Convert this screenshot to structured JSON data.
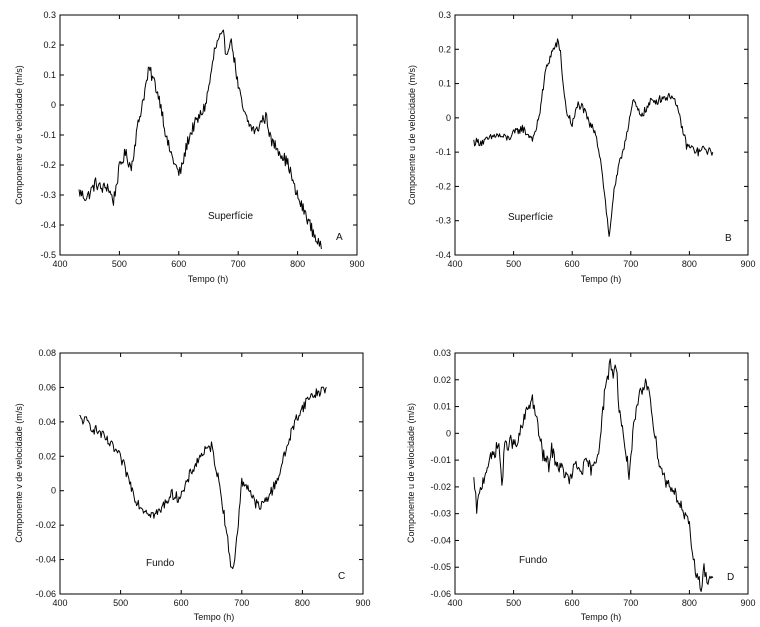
{
  "chart_data": [
    {
      "type": "line",
      "panel_letter": "A",
      "annotation": "Superfície",
      "xlabel": "Tempo (h)",
      "ylabel": "Componente v de velocidade (m/s)",
      "xlim": [
        400,
        900
      ],
      "ylim": [
        -0.5,
        0.3
      ],
      "xticks": [
        400,
        500,
        600,
        700,
        800,
        900
      ],
      "xtick_labels": [
        "400",
        "500",
        "600",
        "700",
        "800",
        "900"
      ],
      "yticks": [
        -0.5,
        -0.4,
        -0.3,
        -0.2,
        -0.1,
        0,
        0.1,
        0.2,
        0.3
      ],
      "ytick_labels": [
        "-0.5",
        "-0.4",
        "-0.3",
        "-0.2",
        "-0.1",
        "0",
        "0.1",
        "0.2",
        "0.3"
      ],
      "noise": 0.02,
      "x": [
        432,
        445,
        460,
        470,
        480,
        490,
        500,
        510,
        520,
        530,
        540,
        550,
        560,
        570,
        580,
        590,
        600,
        605,
        615,
        625,
        635,
        645,
        655,
        660,
        668,
        675,
        680,
        685,
        690,
        700,
        710,
        720,
        730,
        740,
        748,
        755,
        765,
        775,
        785,
        795,
        805,
        815,
        825,
        835,
        840
      ],
      "y": [
        -0.29,
        -0.31,
        -0.26,
        -0.28,
        -0.27,
        -0.32,
        -0.21,
        -0.16,
        -0.21,
        -0.08,
        0.02,
        0.12,
        0.07,
        0.0,
        -0.12,
        -0.18,
        -0.23,
        -0.21,
        -0.12,
        -0.07,
        -0.04,
        0.0,
        0.11,
        0.18,
        0.22,
        0.23,
        0.17,
        0.21,
        0.2,
        0.06,
        -0.03,
        -0.07,
        -0.09,
        -0.05,
        -0.04,
        -0.12,
        -0.14,
        -0.17,
        -0.2,
        -0.28,
        -0.33,
        -0.37,
        -0.42,
        -0.46,
        -0.48
      ]
    },
    {
      "type": "line",
      "panel_letter": "B",
      "annotation": "Superfície",
      "xlabel": "Tempo (h)",
      "ylabel": "Componente u de velocidade (m/s)",
      "xlim": [
        400,
        900
      ],
      "ylim": [
        -0.4,
        0.3
      ],
      "xticks": [
        400,
        500,
        600,
        700,
        800,
        900
      ],
      "xtick_labels": [
        "400",
        "500",
        "600",
        "700",
        "800",
        "900"
      ],
      "yticks": [
        -0.4,
        -0.3,
        -0.2,
        -0.1,
        0,
        0.1,
        0.2,
        0.3
      ],
      "ytick_labels": [
        "-0.4",
        "-0.3",
        "-0.2",
        "-0.1",
        "0",
        "0.1",
        "0.2",
        "0.3"
      ],
      "noise": 0.012,
      "x": [
        432,
        450,
        470,
        490,
        505,
        515,
        525,
        535,
        545,
        555,
        565,
        575,
        580,
        585,
        590,
        600,
        610,
        618,
        630,
        640,
        645,
        650,
        655,
        660,
        663,
        670,
        680,
        690,
        698,
        705,
        715,
        725,
        735,
        745,
        755,
        765,
        770,
        775,
        785,
        795,
        805,
        815,
        825,
        835,
        840
      ],
      "y": [
        -0.07,
        -0.07,
        -0.05,
        -0.06,
        -0.04,
        -0.03,
        -0.05,
        -0.06,
        0.02,
        0.14,
        0.19,
        0.22,
        0.19,
        0.09,
        0.02,
        -0.02,
        0.04,
        0.03,
        -0.02,
        -0.04,
        -0.09,
        -0.14,
        -0.22,
        -0.3,
        -0.35,
        -0.23,
        -0.14,
        -0.07,
        0.0,
        0.05,
        0.01,
        0.02,
        0.05,
        0.05,
        0.06,
        0.06,
        0.07,
        0.05,
        -0.01,
        -0.08,
        -0.09,
        -0.1,
        -0.09,
        -0.1,
        -0.1
      ]
    },
    {
      "type": "line",
      "panel_letter": "C",
      "annotation": "Fundo",
      "xlabel": "Tempo (h)",
      "ylabel": "Componente v de velocidade (m/s)",
      "xlim": [
        400,
        900
      ],
      "ylim": [
        -0.06,
        0.08
      ],
      "xticks": [
        400,
        500,
        600,
        700,
        800,
        900
      ],
      "xtick_labels": [
        "400",
        "500",
        "600",
        "700",
        "800",
        "900"
      ],
      "yticks": [
        -0.06,
        -0.04,
        -0.02,
        0,
        0.02,
        0.04,
        0.06,
        0.08
      ],
      "ytick_labels": [
        "-0.06",
        "-0.04",
        "-0.02",
        "0",
        "0.02",
        "0.04",
        "0.06",
        "0.08"
      ],
      "noise": 0.003,
      "x": [
        432,
        445,
        455,
        465,
        475,
        485,
        495,
        505,
        515,
        525,
        535,
        545,
        555,
        565,
        575,
        585,
        595,
        605,
        615,
        625,
        635,
        645,
        650,
        655,
        665,
        675,
        680,
        685,
        690,
        700,
        710,
        720,
        730,
        740,
        750,
        760,
        770,
        780,
        790,
        800,
        810,
        820,
        830,
        840
      ],
      "y": [
        0.042,
        0.04,
        0.036,
        0.034,
        0.03,
        0.026,
        0.022,
        0.015,
        0.005,
        -0.005,
        -0.01,
        -0.012,
        -0.014,
        -0.012,
        -0.006,
        -0.002,
        -0.004,
        0.0,
        0.01,
        0.016,
        0.022,
        0.024,
        0.026,
        0.018,
        0.0,
        -0.024,
        -0.04,
        -0.045,
        -0.035,
        0.005,
        0.003,
        -0.006,
        -0.01,
        -0.005,
        0.0,
        0.008,
        0.02,
        0.032,
        0.042,
        0.048,
        0.054,
        0.056,
        0.058,
        0.06
      ]
    },
    {
      "type": "line",
      "panel_letter": "D",
      "annotation": "Fundo",
      "xlabel": "Tempo (h)",
      "ylabel": "Componente u de velocidade (m/s)",
      "xlim": [
        400,
        900
      ],
      "ylim": [
        -0.06,
        0.03
      ],
      "xticks": [
        400,
        500,
        600,
        700,
        800,
        900
      ],
      "xtick_labels": [
        "400",
        "500",
        "600",
        "700",
        "800",
        "900"
      ],
      "yticks": [
        -0.06,
        -0.05,
        -0.04,
        -0.03,
        -0.02,
        -0.01,
        0,
        0.01,
        0.02,
        0.03
      ],
      "ytick_labels": [
        "-0.06",
        "-0.05",
        "-0.04",
        "-0.03",
        "-0.02",
        "-0.01",
        "0",
        "0.01",
        "0.02",
        "0.03"
      ],
      "noise": 0.0025,
      "x": [
        432,
        437,
        445,
        455,
        465,
        475,
        480,
        485,
        495,
        505,
        515,
        525,
        532,
        540,
        550,
        560,
        565,
        575,
        585,
        595,
        605,
        615,
        625,
        635,
        645,
        655,
        660,
        665,
        670,
        675,
        680,
        690,
        697,
        705,
        715,
        725,
        732,
        740,
        750,
        760,
        770,
        780,
        790,
        800,
        805,
        810,
        815,
        820,
        825,
        830,
        835,
        840
      ],
      "y": [
        -0.018,
        -0.028,
        -0.02,
        -0.012,
        -0.008,
        -0.004,
        -0.019,
        -0.005,
        -0.003,
        -0.005,
        0.003,
        0.01,
        0.013,
        0.004,
        -0.008,
        -0.012,
        -0.006,
        -0.012,
        -0.014,
        -0.018,
        -0.012,
        -0.014,
        -0.011,
        -0.014,
        -0.006,
        0.014,
        0.02,
        0.027,
        0.022,
        0.026,
        0.01,
        -0.005,
        -0.015,
        0.002,
        0.014,
        0.018,
        0.017,
        0.0,
        -0.012,
        -0.018,
        -0.02,
        -0.024,
        -0.03,
        -0.035,
        -0.045,
        -0.05,
        -0.055,
        -0.057,
        -0.05,
        -0.056,
        -0.053,
        -0.054
      ]
    }
  ]
}
